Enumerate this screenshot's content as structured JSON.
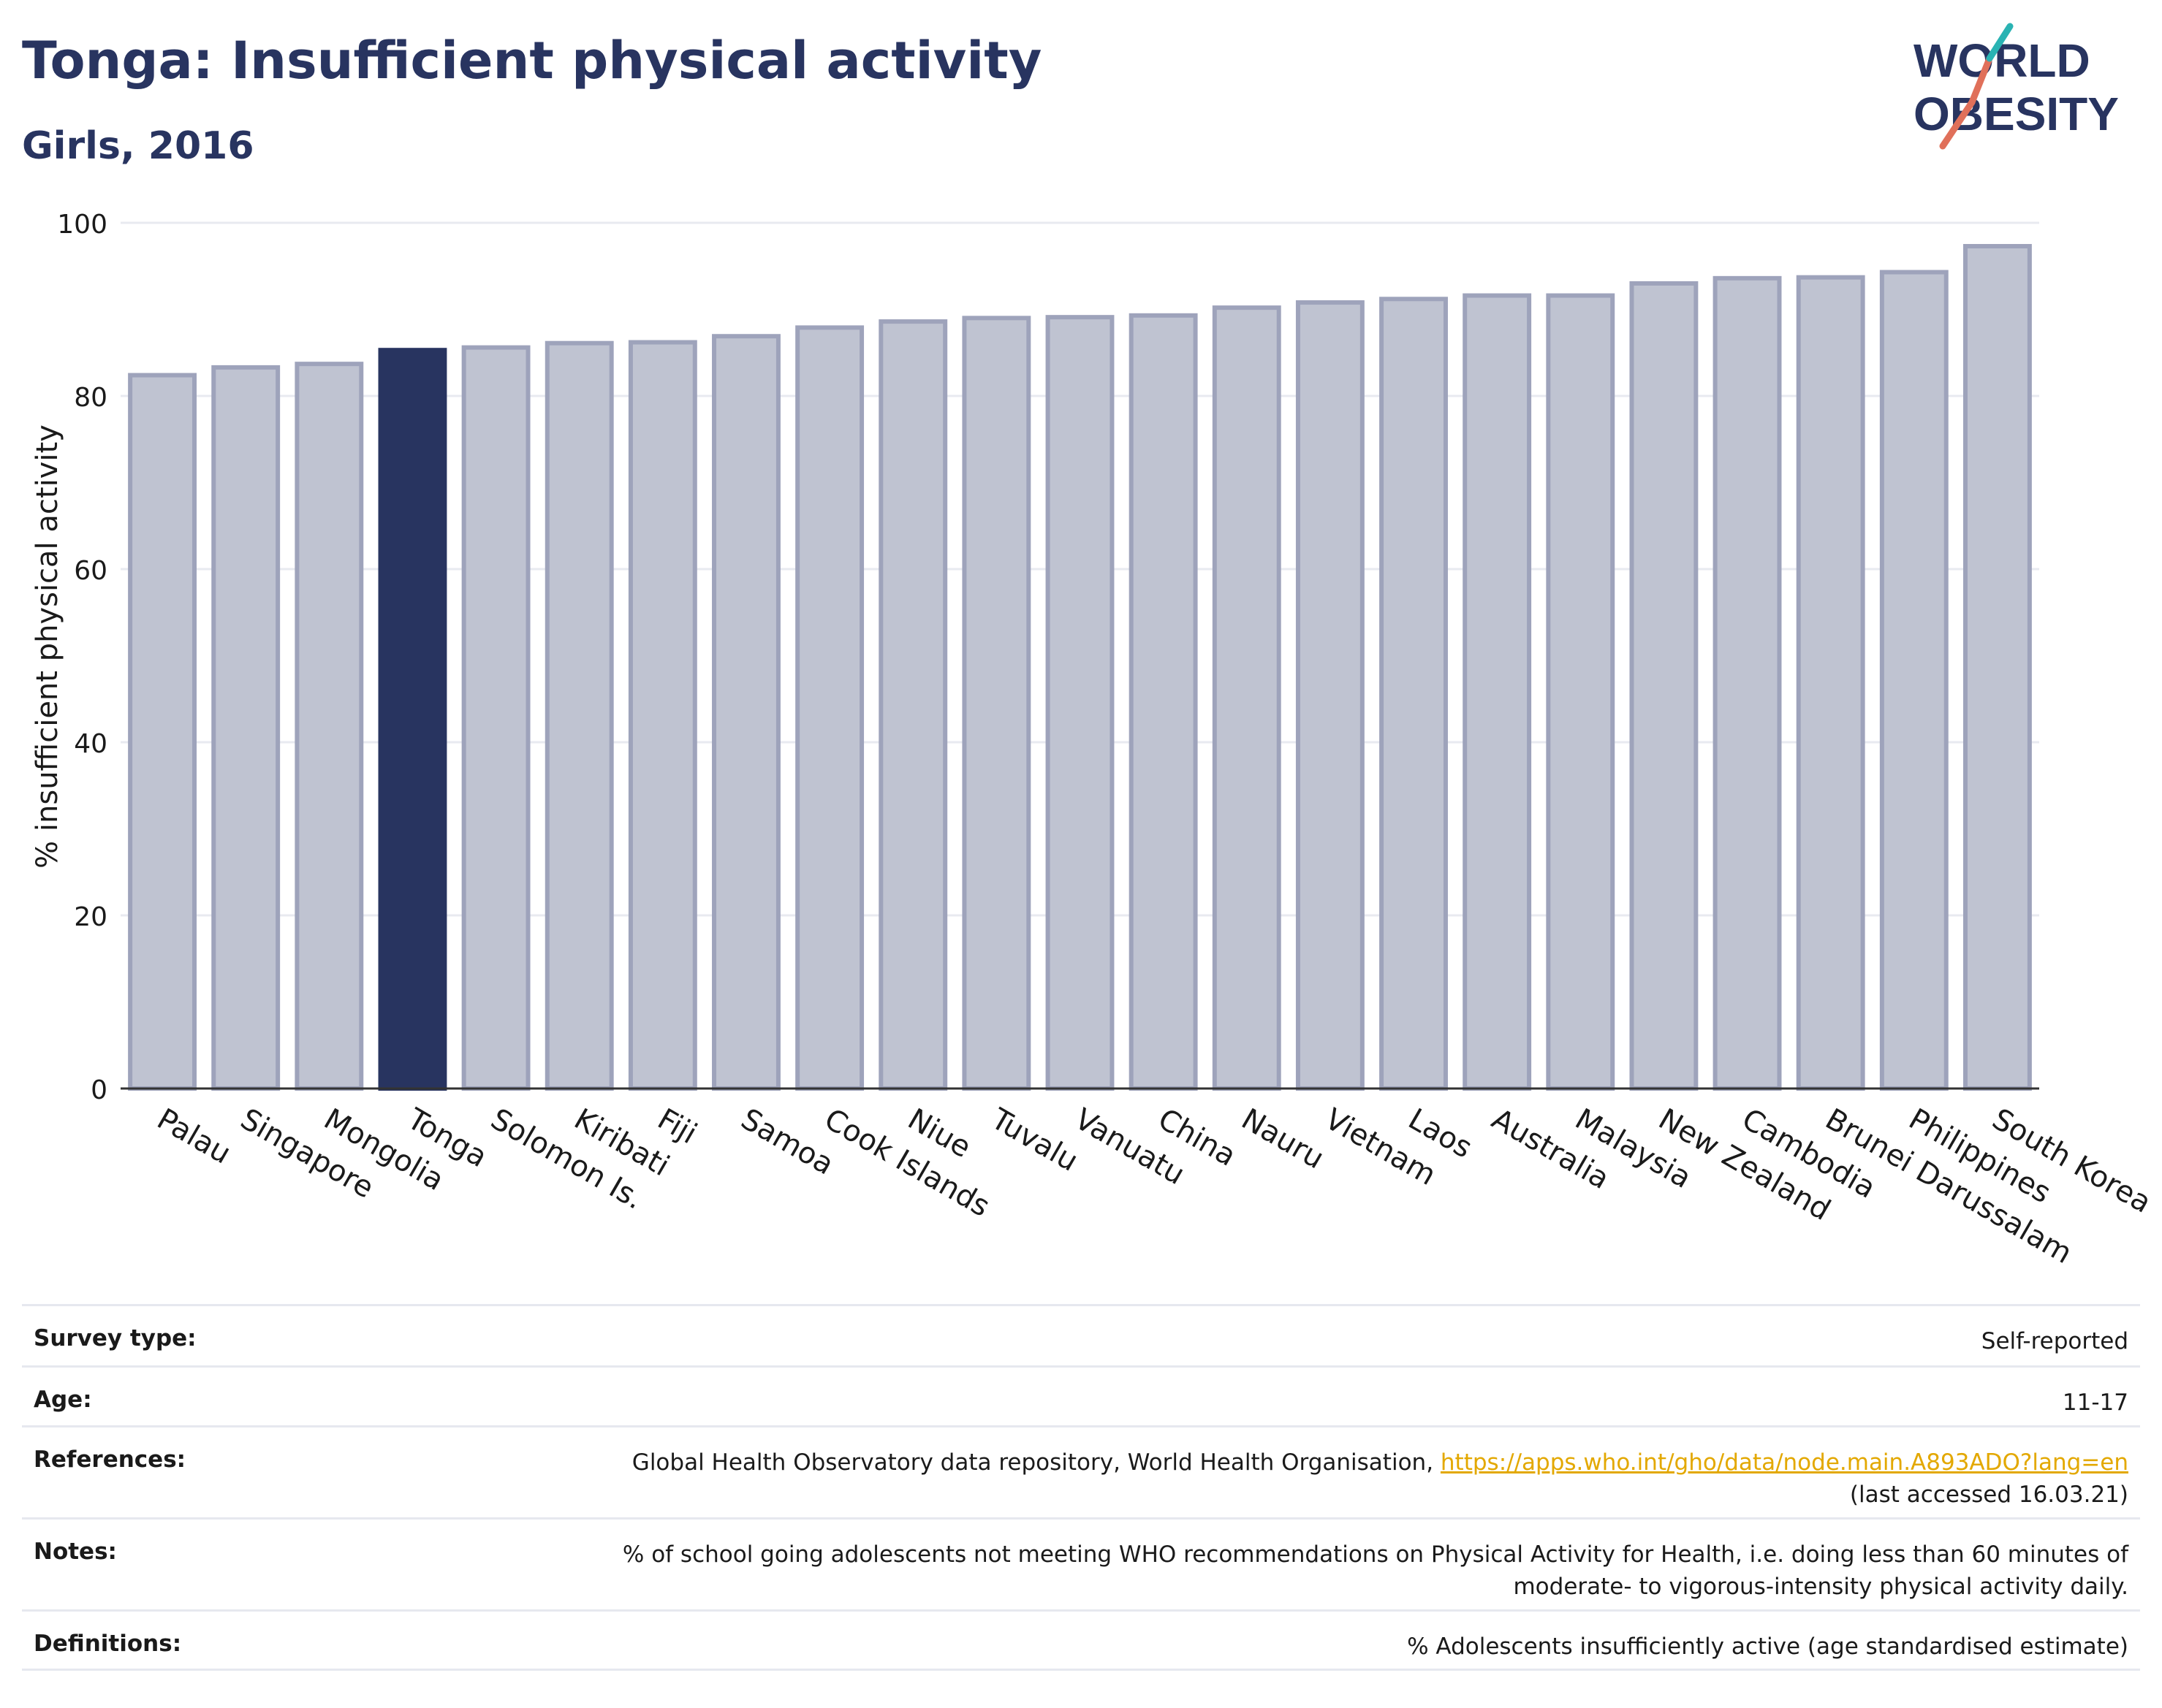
{
  "header": {
    "title": "Tonga: Insufficient physical activity",
    "subtitle": "Girls, 2016",
    "logo_line1": "WORLD",
    "logo_line2": "OBESITY"
  },
  "colors": {
    "highlight": "#283460",
    "bar_fill": "#bfc3d1",
    "bar_stroke": "#9ea3bb",
    "grid": "#e8eaf0",
    "logo_teal": "#2ab3b3",
    "logo_coral": "#e0705a",
    "link": "#e3a800"
  },
  "chart_data": {
    "type": "bar",
    "categories": [
      "Palau",
      "Singapore",
      "Mongolia",
      "Tonga",
      "Solomon Is.",
      "Kiribati",
      "Fiji",
      "Samoa",
      "Cook Islands",
      "Niue",
      "Tuvalu",
      "Vanuatu",
      "China",
      "Nauru",
      "Vietnam",
      "Laos",
      "Australia",
      "Malaysia",
      "New Zealand",
      "Cambodia",
      "Brunei Darussalam",
      "Philippines",
      "South Korea"
    ],
    "values": [
      82.4,
      83.3,
      83.7,
      85.3,
      85.6,
      86.1,
      86.2,
      86.9,
      87.9,
      88.6,
      89.0,
      89.1,
      89.3,
      90.2,
      90.8,
      91.2,
      91.6,
      91.6,
      93.0,
      93.6,
      93.7,
      94.3,
      97.3
    ],
    "highlight": "Tonga",
    "ylabel": "% insufficient physical activity",
    "xlabel": "",
    "ylim": [
      0,
      100
    ],
    "yticks": [
      0,
      20,
      40,
      60,
      80,
      100
    ],
    "grid": true,
    "legend": "none"
  },
  "info": {
    "survey_label": "Survey type:",
    "survey_value": "Self-reported",
    "age_label": "Age:",
    "age_value": "11-17",
    "references_label": "References:",
    "references_text": "Global Health Observatory data repository, World Health Organisation, ",
    "references_link": "https://apps.who.int/gho/data/node.main.A893ADO?lang=en",
    "references_accessed": "(last accessed 16.03.21)",
    "notes_label": "Notes:",
    "notes_line1": "% of school going adolescents not meeting WHO recommendations on Physical Activity for Health, i.e. doing less than 60 minutes of",
    "notes_line2": "moderate- to vigorous-intensity physical activity daily.",
    "definitions_label": "Definitions:",
    "definitions_value": "% Adolescents insufficiently active (age standardised estimate)"
  }
}
